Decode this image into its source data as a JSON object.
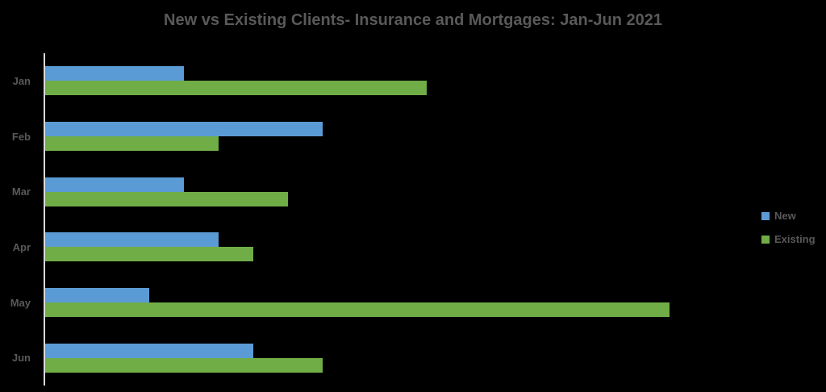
{
  "page": {
    "background_color": "#000000",
    "text_color": "#595959",
    "axis_line_color": "#D9D9D9"
  },
  "legend": {
    "position": "right",
    "entries": [
      "New",
      "Existing"
    ]
  },
  "chart_data": {
    "type": "bar",
    "orientation": "horizontal",
    "title": "New vs Existing Clients- Insurance and Mortgages: Jan-Jun 2021",
    "categories": [
      "Jan",
      "Feb",
      "Mar",
      "Apr",
      "May",
      "Jun"
    ],
    "series": [
      {
        "name": "New",
        "color": "#5B9BD5",
        "values": [
          20,
          40,
          20,
          25,
          15,
          30
        ]
      },
      {
        "name": "Existing",
        "color": "#70AD47",
        "values": [
          55,
          25,
          35,
          30,
          90,
          40
        ]
      }
    ],
    "xlabel": "",
    "ylabel": "",
    "xlim": [
      0,
      100
    ],
    "value_axis_labels_visible": false,
    "gridlines": false,
    "legend_position": "right-middle",
    "values_note": "No value-axis labels or gridlines are shown in the image; values are estimated from relative bar lengths."
  }
}
